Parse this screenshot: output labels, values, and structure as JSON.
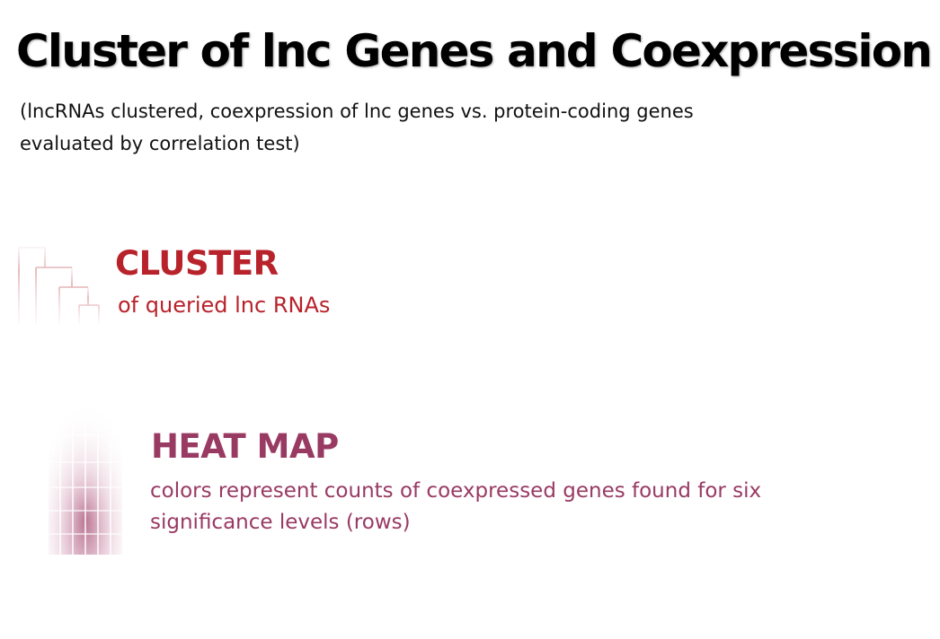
{
  "header": {
    "title": "Cluster of lnc Genes and Coexpression",
    "subtitle": "(lncRNAs clustered, coexpression of lnc genes vs. protein-coding genes evaluated by correlation test)"
  },
  "cluster": {
    "heading": "CLUSTER",
    "description": "of queried lnc RNAs",
    "icon": "dendrogram-icon",
    "color": "#b8222b"
  },
  "heatmap": {
    "heading": "HEAT MAP",
    "description": "colors represent counts of coexpressed genes found for six significance levels (rows)",
    "icon": "heatmap-icon",
    "color": "#993a63"
  }
}
